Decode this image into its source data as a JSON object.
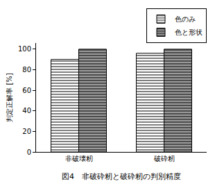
{
  "chart_data": {
    "type": "bar",
    "title": "図4　非破砕籾と破砕籾の判別精度",
    "y_label": "判定正解率 [%]",
    "categories": [
      "非破壊籾",
      "破砕籾"
    ],
    "series": [
      {
        "name": "色のみ",
        "color": "#ffffff",
        "values": [
          90,
          96
        ]
      },
      {
        "name": "色と形状",
        "color": "#9a9a9a",
        "values": [
          100,
          100
        ]
      }
    ],
    "ylim": [
      0,
      106
    ],
    "yticks": [
      0,
      20,
      40,
      60,
      80,
      100
    ],
    "grid": false,
    "legend": "top right"
  }
}
